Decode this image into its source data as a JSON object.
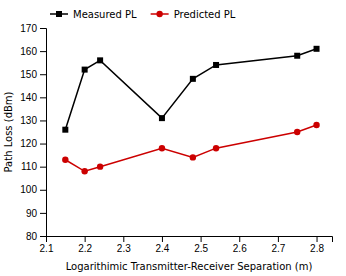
{
  "chart_data": {
    "type": "line",
    "xlabel": "Logarithimic Transmitter-Receiver Separation (m)",
    "ylabel": "Path Loss (dBm)",
    "x": [
      2.15,
      2.2,
      2.24,
      2.4,
      2.48,
      2.54,
      2.75,
      2.8
    ],
    "series": [
      {
        "name": "Measured PL",
        "color": "#000000",
        "marker": "square",
        "values": [
          126,
          152,
          156,
          131,
          148,
          154,
          158,
          161
        ]
      },
      {
        "name": "Predicted PL",
        "color": "#cc0000",
        "marker": "circle",
        "values": [
          113,
          108,
          110,
          118,
          114,
          118,
          125,
          128
        ]
      }
    ],
    "xlim": [
      2.1,
      2.84
    ],
    "ylim": [
      80,
      170
    ],
    "xticks": [
      2.1,
      2.2,
      2.3,
      2.4,
      2.5,
      2.6,
      2.7,
      2.8
    ],
    "yticks": [
      80,
      90,
      100,
      110,
      120,
      130,
      140,
      150,
      160,
      170
    ],
    "legend": "upper left",
    "grid": false
  }
}
